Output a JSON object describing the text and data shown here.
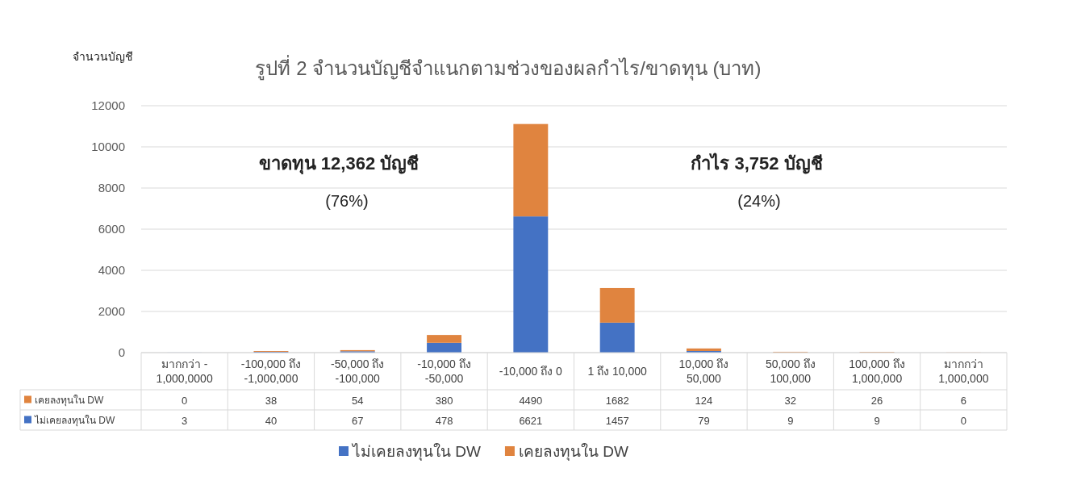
{
  "chart_data": {
    "type": "bar",
    "stacked": true,
    "title": "รูปที่ 2 จำนวนบัญชีจำแนกตามช่วงของผลกำไร/ขาดทุน (บาท)",
    "ylabel": "จำนวนบัญชี",
    "categories": [
      "มากกว่า - 1,000,0000",
      "-100,000 ถึง -1,000,000",
      "-50,000 ถึง -100,000",
      "-10,000 ถึง -50,000",
      "-10,000 ถึง 0",
      "1 ถึง 10,000",
      "10,000 ถึง 50,000",
      "50,000 ถึง 100,000",
      "100,000 ถึง 1,000,000",
      "มากกว่า 1,000,000"
    ],
    "series": [
      {
        "name": "ไม่เคยลงทุนใน DW",
        "color": "#4472c4",
        "values": [
          3,
          40,
          67,
          478,
          6621,
          1457,
          79,
          9,
          9,
          0
        ]
      },
      {
        "name": "เคยลงทุนใน DW",
        "color": "#e0843f",
        "values": [
          0,
          38,
          54,
          380,
          4490,
          1682,
          124,
          32,
          26,
          6
        ]
      }
    ],
    "ylim": [
      0,
      12000
    ],
    "yticks": [
      0,
      2000,
      4000,
      6000,
      8000,
      10000,
      12000
    ],
    "grid": "y",
    "legend": "bottom",
    "data_labels": true,
    "annotations": [
      "ขาดทุน 12,362 บัญชี",
      "(76%)",
      "กำไร 3,752 บัญชี",
      "(24%)"
    ]
  }
}
